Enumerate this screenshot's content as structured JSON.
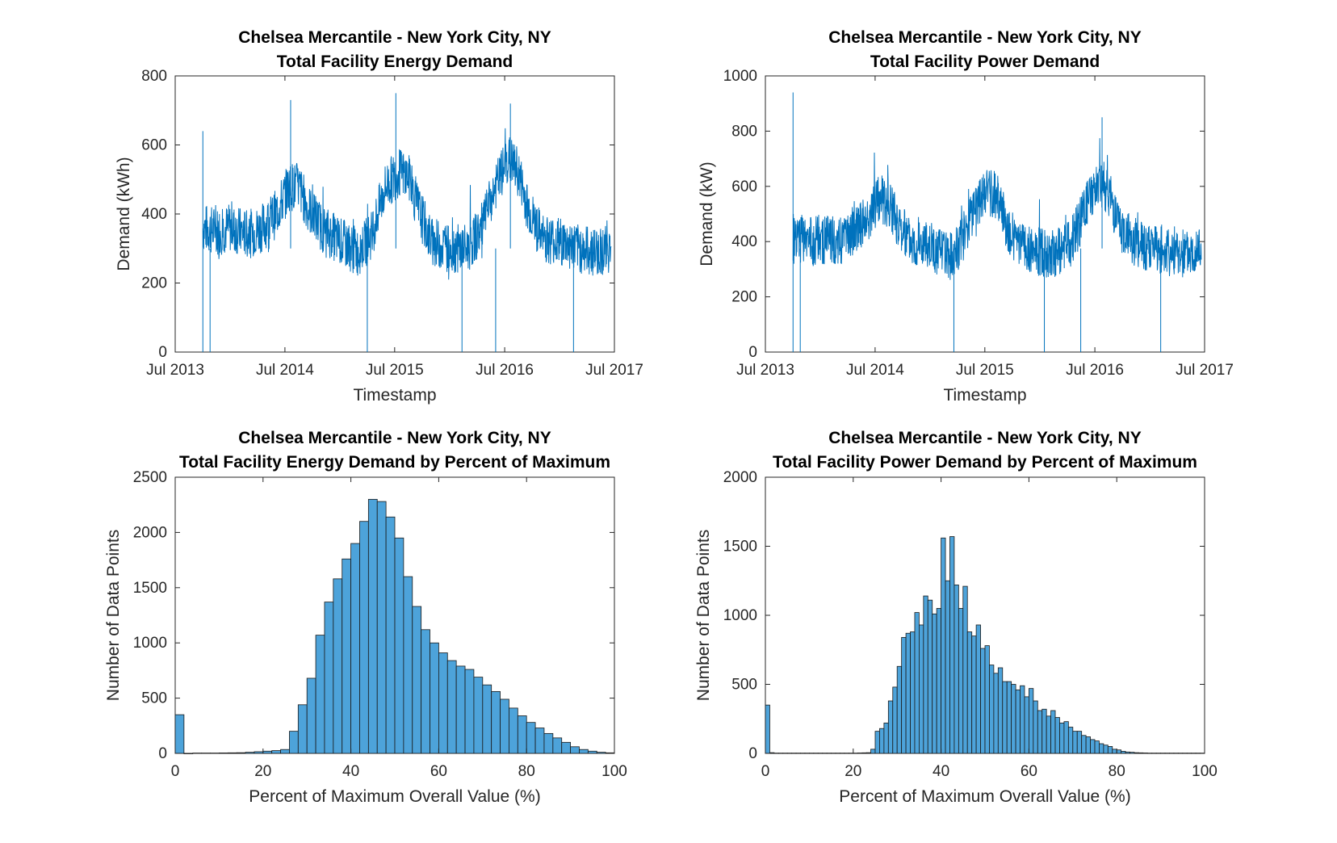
{
  "colors": {
    "line": "#0072BD",
    "bar_fill": "#4DA3DA",
    "bar_edge": "#1a1a1a",
    "axis": "#262626"
  },
  "chart_data": [
    {
      "id": "energy_ts",
      "type": "line",
      "title": [
        "Chelsea Mercantile - New York City, NY",
        "Total Facility Energy Demand"
      ],
      "xlabel": "Timestamp",
      "ylabel": "Demand (kWh)",
      "xlim": [
        "2013-07-01",
        "2017-07-01"
      ],
      "ylim": [
        0,
        800
      ],
      "xticks": [
        "Jul 2013",
        "Jul 2014",
        "Jul 2015",
        "Jul 2016",
        "Jul 2017"
      ],
      "yticks": [
        0,
        200,
        400,
        600,
        800
      ],
      "series": [
        {
          "x": [
            "2013-10-01",
            "2013-11-15",
            "2014-01-01",
            "2014-03-01",
            "2014-04-15",
            "2014-06-01",
            "2014-07-15",
            "2014-08-15",
            "2014-09-15",
            "2014-11-01",
            "2015-01-01",
            "2015-03-01",
            "2015-04-15",
            "2015-06-01",
            "2015-07-15",
            "2015-08-15",
            "2015-09-15",
            "2015-11-01",
            "2016-01-01",
            "2016-03-01",
            "2016-04-15",
            "2016-06-01",
            "2016-07-15",
            "2016-08-15",
            "2016-09-15",
            "2016-11-01",
            "2017-01-01",
            "2017-03-01",
            "2017-05-01",
            "2017-06-20"
          ],
          "y": [
            360,
            350,
            360,
            340,
            360,
            400,
            480,
            480,
            420,
            360,
            320,
            290,
            340,
            480,
            520,
            510,
            420,
            320,
            300,
            300,
            360,
            480,
            560,
            520,
            420,
            330,
            320,
            300,
            290,
            300
          ]
        }
      ],
      "spikes": [
        [
          "2013-10-01",
          0
        ],
        [
          "2013-10-01",
          640
        ],
        [
          "2013-10-25",
          0
        ],
        [
          "2015-04-01",
          0
        ],
        [
          "2015-07-05",
          750
        ],
        [
          "2016-02-10",
          0
        ],
        [
          "2016-06-01",
          0
        ],
        [
          "2016-07-20",
          720
        ],
        [
          "2017-02-15",
          0
        ],
        [
          "2014-07-20",
          730
        ]
      ]
    },
    {
      "id": "power_ts",
      "type": "line",
      "title": [
        "Chelsea Mercantile - New York City, NY",
        "Total Facility Power Demand"
      ],
      "xlabel": "Timestamp",
      "ylabel": "Demand (kW)",
      "xlim": [
        "2013-07-01",
        "2017-07-01"
      ],
      "ylim": [
        0,
        1000
      ],
      "xticks": [
        "Jul 2013",
        "Jul 2014",
        "Jul 2015",
        "Jul 2016",
        "Jul 2017"
      ],
      "yticks": [
        0,
        200,
        400,
        600,
        800,
        1000
      ],
      "series": [
        {
          "x": [
            "2013-10-01",
            "2013-11-15",
            "2014-01-01",
            "2014-03-01",
            "2014-04-15",
            "2014-06-01",
            "2014-07-15",
            "2014-08-15",
            "2014-09-15",
            "2014-11-01",
            "2015-01-01",
            "2015-03-01",
            "2015-04-15",
            "2015-06-01",
            "2015-07-15",
            "2015-08-15",
            "2015-09-15",
            "2015-11-01",
            "2016-01-01",
            "2016-03-01",
            "2016-04-15",
            "2016-06-01",
            "2016-07-15",
            "2016-08-15",
            "2016-09-15",
            "2016-11-01",
            "2017-01-01",
            "2017-03-01",
            "2017-05-01",
            "2017-06-20"
          ],
          "y": [
            420,
            400,
            410,
            400,
            420,
            480,
            560,
            540,
            460,
            410,
            380,
            340,
            400,
            540,
            580,
            560,
            450,
            380,
            360,
            360,
            400,
            520,
            620,
            580,
            460,
            400,
            380,
            360,
            360,
            380
          ]
        }
      ],
      "spikes": [
        [
          "2013-10-01",
          940
        ],
        [
          "2013-10-01",
          0
        ],
        [
          "2013-10-25",
          0
        ],
        [
          "2015-03-20",
          0
        ],
        [
          "2016-01-15",
          0
        ],
        [
          "2016-05-15",
          0
        ],
        [
          "2016-07-25",
          850
        ],
        [
          "2017-02-05",
          0
        ]
      ]
    },
    {
      "id": "energy_hist",
      "type": "bar",
      "title": [
        "Chelsea Mercantile - New York City, NY",
        "Total Facility Energy Demand by Percent of Maximum"
      ],
      "xlabel": "Percent of Maximum Overall Value (%)",
      "ylabel": "Number of Data Points",
      "xlim": [
        0,
        100
      ],
      "ylim": [
        0,
        2500
      ],
      "xticks": [
        0,
        20,
        40,
        60,
        80,
        100
      ],
      "yticks": [
        0,
        500,
        1000,
        1500,
        2000,
        2500
      ],
      "bin_width": 2,
      "bin_start": 0,
      "values": [
        350,
        0,
        3,
        3,
        3,
        4,
        5,
        6,
        10,
        15,
        20,
        25,
        35,
        200,
        440,
        680,
        1070,
        1370,
        1580,
        1760,
        1900,
        2100,
        2300,
        2280,
        2140,
        1950,
        1600,
        1330,
        1120,
        1000,
        910,
        840,
        790,
        760,
        690,
        620,
        560,
        490,
        410,
        340,
        280,
        230,
        180,
        140,
        100,
        60,
        35,
        20,
        10,
        5
      ]
    },
    {
      "id": "power_hist",
      "type": "bar",
      "title": [
        "Chelsea Mercantile - New York City, NY",
        "Total Facility Power Demand by Percent of Maximum"
      ],
      "xlabel": "Percent of Maximum Overall Value (%)",
      "ylabel": "Number of Data Points",
      "xlim": [
        0,
        100
      ],
      "ylim": [
        0,
        2000
      ],
      "xticks": [
        0,
        20,
        40,
        60,
        80,
        100
      ],
      "yticks": [
        0,
        500,
        1000,
        1500,
        2000
      ],
      "bin_width": 1,
      "bin_start": 0,
      "values": [
        350,
        5,
        2,
        2,
        2,
        2,
        2,
        2,
        2,
        2,
        2,
        2,
        2,
        2,
        2,
        2,
        2,
        2,
        2,
        2,
        2,
        3,
        4,
        5,
        30,
        160,
        180,
        220,
        380,
        480,
        630,
        840,
        870,
        880,
        1020,
        930,
        1140,
        1110,
        1010,
        1050,
        1560,
        1250,
        1570,
        1220,
        1050,
        1210,
        880,
        850,
        930,
        760,
        780,
        640,
        580,
        620,
        520,
        520,
        500,
        460,
        490,
        410,
        470,
        380,
        310,
        320,
        270,
        310,
        260,
        220,
        230,
        190,
        160,
        160,
        130,
        120,
        100,
        90,
        70,
        60,
        50,
        30,
        25,
        15,
        10,
        8,
        5,
        4,
        3,
        2,
        2,
        2,
        2,
        2,
        2,
        2,
        2,
        2,
        2,
        2,
        2,
        2
      ]
    }
  ]
}
